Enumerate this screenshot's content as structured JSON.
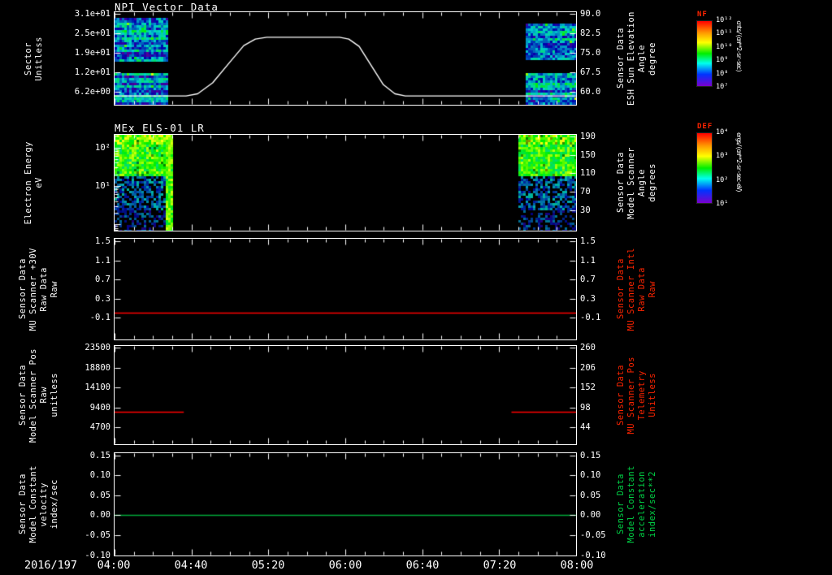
{
  "page": {
    "background": "#000000",
    "text_color": "#ffffff",
    "accent_red": "#ff2400",
    "accent_green": "#00d346"
  },
  "footer": {
    "date_label": "2016/197",
    "time_ticks": [
      "04:00",
      "04:40",
      "05:20",
      "06:00",
      "06:40",
      "07:20",
      "08:00"
    ]
  },
  "colorbars": [
    {
      "title": "NF",
      "title_color": "#ff2400",
      "units": "cnts/(cm**2-sr-sec)",
      "ticks": [
        "10¹²",
        "10¹¹",
        "10¹⁰",
        "10⁹",
        "10⁸",
        "10⁷"
      ]
    },
    {
      "title": "DEF",
      "title_color": "#ff2400",
      "units": "ergs/(cm**2-sr-sec-eV)",
      "ticks": [
        "10⁴",
        "10³",
        "10²",
        "10¹"
      ]
    }
  ],
  "time_axis": {
    "hours": [
      4,
      8
    ],
    "date": "2016/197"
  },
  "chart_data": [
    {
      "type": "spectrogram",
      "title": "NPI Vector Data",
      "left_axis": {
        "lines": [
          "Sector",
          "Unitless"
        ],
        "scale": "linear",
        "ylim": [
          2.15,
          31.5
        ],
        "color": "#ffffff",
        "ticks": [
          {
            "v": 31.0,
            "t": "3.1e+01"
          },
          {
            "v": 24.8,
            "t": "2.5e+01"
          },
          {
            "v": 18.6,
            "t": "1.9e+01"
          },
          {
            "v": 12.4,
            "t": "1.2e+01"
          },
          {
            "v": 6.2,
            "t": "6.2e+00"
          }
        ]
      },
      "right_axis": {
        "lines": [
          "Sensor Data",
          "ESH Sun Elevation",
          "Angle",
          "degree"
        ],
        "scale": "linear",
        "ylim": [
          55.1,
          90.6
        ],
        "color": "#ffffff",
        "ticks": [
          {
            "v": 90.0,
            "t": "90.0"
          },
          {
            "v": 82.5,
            "t": "82.5"
          },
          {
            "v": 75.0,
            "t": "75.0"
          },
          {
            "v": 67.5,
            "t": "67.5"
          },
          {
            "v": 60.0,
            "t": "60.0"
          }
        ]
      },
      "spectrogram": {
        "palette": "npi",
        "blocks": [
          {
            "t0": 4.0,
            "t1": 4.45,
            "bands": [
              [
                0.06,
                0.52
              ],
              [
                0.66,
                1.0
              ]
            ],
            "bright_edge": false
          },
          {
            "t0": 7.56,
            "t1": 8.0,
            "bands": [
              [
                0.12,
                0.52
              ],
              [
                0.66,
                1.0
              ]
            ],
            "bright_edge": false
          }
        ]
      },
      "lines": [
        {
          "color": "#ffffff",
          "width": 1.4,
          "axis": "right",
          "points": [
            [
              4.0,
              58.5
            ],
            [
              4.62,
              58.5
            ],
            [
              4.72,
              59.3
            ],
            [
              4.85,
              63.5
            ],
            [
              5.0,
              71.5
            ],
            [
              5.12,
              77.8
            ],
            [
              5.22,
              80.3
            ],
            [
              5.32,
              81.0
            ],
            [
              5.95,
              81.0
            ],
            [
              6.03,
              80.3
            ],
            [
              6.12,
              77.5
            ],
            [
              6.22,
              70.5
            ],
            [
              6.33,
              62.8
            ],
            [
              6.43,
              59.3
            ],
            [
              6.52,
              58.5
            ],
            [
              8.0,
              58.5
            ]
          ]
        }
      ]
    },
    {
      "type": "spectrogram",
      "title": "MEx ELS-01 LR",
      "left_axis": {
        "lines": [
          "Electron Energy",
          "eV"
        ],
        "scale": "log",
        "ylim": [
          0.68,
          215
        ],
        "color": "#ffffff",
        "ticks": [
          {
            "v": 100,
            "t": "10²"
          },
          {
            "v": 10,
            "t": "10¹"
          }
        ]
      },
      "right_axis": {
        "lines": [
          "Sensor Data",
          "Model Scanner",
          "Angle",
          "degrees"
        ],
        "scale": "linear",
        "ylim": [
          -15,
          194
        ],
        "color": "#ffffff",
        "ticks": [
          {
            "v": 190,
            "t": "190"
          },
          {
            "v": 150,
            "t": "150"
          },
          {
            "v": 110,
            "t": "110"
          },
          {
            "v": 70,
            "t": "70"
          },
          {
            "v": 30,
            "t": "30"
          }
        ]
      },
      "spectrogram": {
        "palette": "els",
        "blocks": [
          {
            "t0": 4.0,
            "t1": 4.5,
            "bands": [
              [
                0,
                1
              ]
            ],
            "bright_edge": true
          },
          {
            "t0": 7.5,
            "t1": 8.0,
            "bands": [
              [
                0,
                1
              ]
            ],
            "bright_edge": false
          }
        ]
      },
      "lines": []
    },
    {
      "type": "line",
      "title": "",
      "left_axis": {
        "lines": [
          "Sensor Data",
          "MU Scanner +30V",
          "Raw Data",
          "Raw"
        ],
        "scale": "linear",
        "ylim": [
          -0.55,
          1.55
        ],
        "color": "#ffffff",
        "ticks": [
          {
            "v": 1.5,
            "t": "1.5"
          },
          {
            "v": 1.1,
            "t": "1.1"
          },
          {
            "v": 0.7,
            "t": "0.7"
          },
          {
            "v": 0.3,
            "t": "0.3"
          },
          {
            "v": -0.1,
            "t": "-0.1"
          }
        ]
      },
      "right_axis": {
        "lines": [
          "Sensor Data",
          "MU Scanner Intl",
          "Raw Data",
          "Raw"
        ],
        "scale": "linear",
        "ylim": [
          -0.55,
          1.55
        ],
        "color": "#ff2400",
        "ticks": [
          {
            "v": 1.5,
            "t": "1.5"
          },
          {
            "v": 1.1,
            "t": "1.1"
          },
          {
            "v": 0.7,
            "t": "0.7"
          },
          {
            "v": 0.3,
            "t": "0.3"
          },
          {
            "v": -0.1,
            "t": "-0.1"
          }
        ]
      },
      "lines": [
        {
          "color": "#ff0000",
          "width": 1.4,
          "axis": "left",
          "points": [
            [
              4.0,
              0.0
            ],
            [
              8.0,
              0.0
            ]
          ]
        }
      ]
    },
    {
      "type": "line",
      "title": "",
      "left_axis": {
        "lines": [
          "Sensor Data",
          "Model Scanner Pos",
          "Raw",
          "unitless"
        ],
        "scale": "linear",
        "ylim": [
          750,
          23880
        ],
        "color": "#ffffff",
        "ticks": [
          {
            "v": 23500,
            "t": "23500"
          },
          {
            "v": 18800,
            "t": "18800"
          },
          {
            "v": 14100,
            "t": "14100"
          },
          {
            "v": 9400,
            "t": "9400"
          },
          {
            "v": 4700,
            "t": "4700"
          }
        ]
      },
      "right_axis": {
        "lines": [
          "Sensor Data",
          "MU Scanner Pos",
          "Telemetry",
          "Unitless"
        ],
        "scale": "linear",
        "ylim": [
          -1.5,
          264.3
        ],
        "color": "#ff2400",
        "ticks": [
          {
            "v": 260,
            "t": "260"
          },
          {
            "v": 206,
            "t": "206"
          },
          {
            "v": 152,
            "t": "152"
          },
          {
            "v": 98,
            "t": "98"
          },
          {
            "v": 44,
            "t": "44"
          }
        ]
      },
      "lines": [
        {
          "color": "#ff0000",
          "width": 1.4,
          "axis": "left",
          "points": [
            [
              4.0,
              8300
            ],
            [
              4.6,
              8300
            ]
          ]
        },
        {
          "color": "#ff0000",
          "width": 1.4,
          "axis": "left",
          "points": [
            [
              7.44,
              8300
            ],
            [
              8.0,
              8300
            ]
          ]
        }
      ]
    },
    {
      "type": "line",
      "title": "",
      "left_axis": {
        "lines": [
          "Sensor Data",
          "Model Constant",
          "velocity",
          "index/sec"
        ],
        "scale": "linear",
        "ylim": [
          -0.101,
          0.156
        ],
        "color": "#ffffff",
        "ticks": [
          {
            "v": 0.15,
            "t": "0.15"
          },
          {
            "v": 0.1,
            "t": "0.10"
          },
          {
            "v": 0.05,
            "t": "0.05"
          },
          {
            "v": 0.0,
            "t": "0.00"
          },
          {
            "v": -0.05,
            "t": "-0.05"
          },
          {
            "v": -0.1,
            "t": "-0.10"
          }
        ]
      },
      "right_axis": {
        "lines": [
          "Sensor Data",
          "Model Constant",
          "acceleration",
          "index/sec**2"
        ],
        "scale": "linear",
        "ylim": [
          -0.101,
          0.156
        ],
        "color": "#00d346",
        "ticks": [
          {
            "v": 0.15,
            "t": "0.15"
          },
          {
            "v": 0.1,
            "t": "0.10"
          },
          {
            "v": 0.05,
            "t": "0.05"
          },
          {
            "v": 0.0,
            "t": "0.00"
          },
          {
            "v": -0.05,
            "t": "-0.05"
          },
          {
            "v": -0.1,
            "t": "-0.10"
          }
        ]
      },
      "lines": [
        {
          "color": "#00a839",
          "width": 1.4,
          "axis": "left",
          "points": [
            [
              4.0,
              0.0
            ],
            [
              8.0,
              0.0
            ]
          ]
        }
      ]
    }
  ]
}
